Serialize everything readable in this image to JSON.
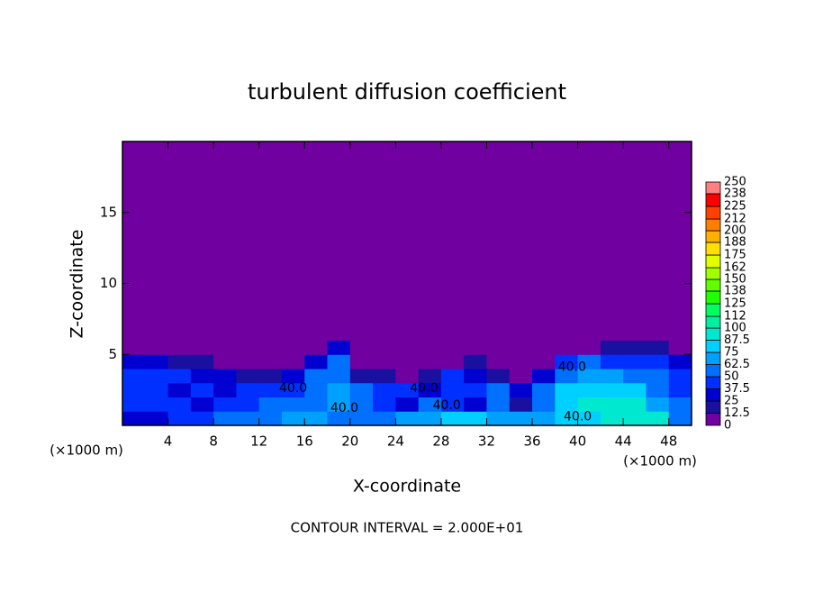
{
  "chart_data": {
    "type": "heatmap",
    "title": "turbulent diffusion coefficient",
    "x_label": "X-coordinate",
    "y_label": "Z-coordinate",
    "x_unit_labels": [
      "(×1000 m)",
      "(×1000 m)"
    ],
    "footer": "CONTOUR INTERVAL = 2.000E+01",
    "annotations": [
      "40.0",
      "40.0",
      "40.0",
      "40.0",
      "40.0",
      "40.0"
    ],
    "xlim": [
      0,
      50
    ],
    "xticks": [
      4,
      8,
      12,
      16,
      20,
      24,
      28,
      32,
      36,
      40,
      44,
      48
    ],
    "ylim": [
      0,
      20
    ],
    "yticks": [
      5,
      10,
      15
    ],
    "x_edges": [
      0,
      2,
      4,
      6,
      8,
      10,
      12,
      14,
      16,
      18,
      20,
      22,
      24,
      26,
      28,
      30,
      32,
      34,
      36,
      38,
      40,
      42,
      44,
      46,
      48,
      50
    ],
    "z_edges": [
      0,
      1,
      2,
      3,
      4,
      5,
      6,
      20
    ],
    "values": [
      [
        30,
        35,
        40,
        45,
        50,
        55,
        60,
        65,
        70,
        60,
        55,
        60,
        65,
        70,
        75,
        75,
        70,
        65,
        65,
        75,
        85,
        90,
        95,
        90,
        60
      ],
      [
        40,
        45,
        40,
        35,
        40,
        45,
        50,
        55,
        60,
        70,
        60,
        40,
        30,
        60,
        45,
        30,
        50,
        20,
        60,
        80,
        90,
        95,
        90,
        70,
        50
      ],
      [
        45,
        40,
        35,
        40,
        35,
        40,
        40,
        45,
        55,
        65,
        50,
        45,
        40,
        35,
        45,
        40,
        50,
        30,
        55,
        75,
        85,
        85,
        75,
        60,
        45
      ],
      [
        40,
        45,
        40,
        35,
        30,
        20,
        15,
        30,
        50,
        55,
        20,
        15,
        10,
        20,
        40,
        30,
        15,
        10,
        30,
        60,
        70,
        65,
        60,
        50,
        40
      ],
      [
        30,
        25,
        20,
        15,
        10,
        5,
        5,
        10,
        30,
        50,
        10,
        5,
        0,
        0,
        5,
        20,
        5,
        0,
        10,
        40,
        50,
        45,
        40,
        40,
        35
      ],
      [
        10,
        5,
        5,
        5,
        0,
        0,
        0,
        0,
        5,
        30,
        0,
        0,
        0,
        0,
        0,
        0,
        0,
        0,
        0,
        10,
        10,
        15,
        20,
        20,
        10
      ],
      [
        0,
        0,
        0,
        0,
        0,
        0,
        0,
        0,
        0,
        0,
        0,
        0,
        0,
        0,
        0,
        0,
        0,
        0,
        0,
        0,
        0,
        0,
        0,
        0,
        0
      ]
    ],
    "levels": [
      0,
      12.5,
      25,
      37.5,
      50,
      62.5,
      75,
      87.5,
      100,
      112,
      125,
      138,
      150,
      162,
      175,
      188,
      200,
      212,
      225,
      238,
      250
    ],
    "colors": [
      "#7000a0",
      "#1a10a0",
      "#0000d0",
      "#0030ff",
      "#0070ff",
      "#00a0ff",
      "#00d0ff",
      "#00e8d0",
      "#00f0a0",
      "#00ff60",
      "#20ff00",
      "#60ff00",
      "#a0ff00",
      "#e0ff00",
      "#ffe000",
      "#ffb000",
      "#ff8000",
      "#ff4000",
      "#ff0000",
      "#ff8080"
    ]
  }
}
